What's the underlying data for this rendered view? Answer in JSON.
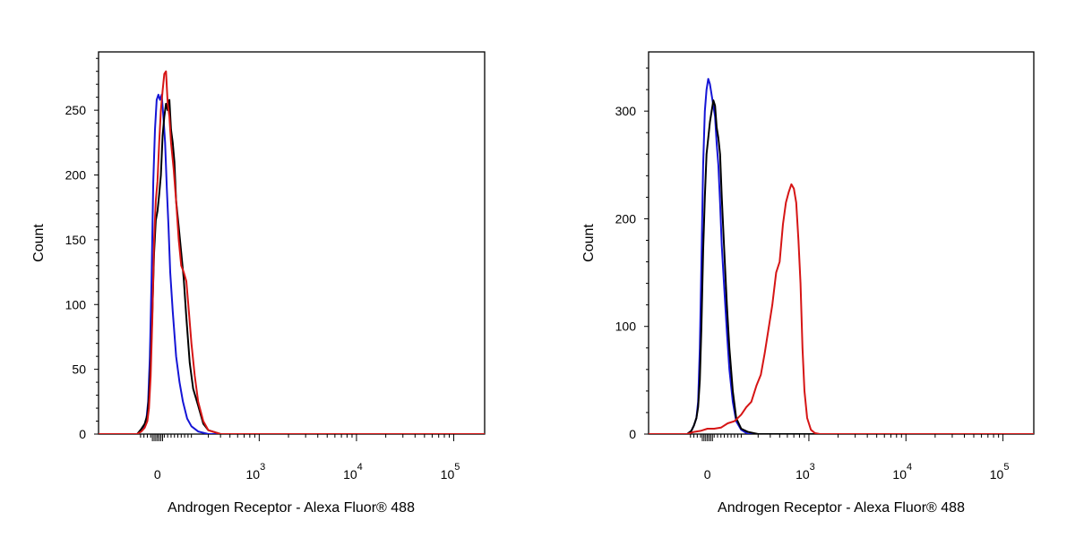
{
  "chart_data": [
    {
      "type": "line",
      "subtype": "flow-cytometry-histogram",
      "xlabel": "Androgen Receptor - Alexa Fluor® 488",
      "ylabel": "Count",
      "xscale": "biexponential",
      "ylim": [
        0,
        295
      ],
      "yticks": [
        0,
        50,
        100,
        150,
        200,
        250
      ],
      "ytick_labels": [
        "0",
        "50",
        "100",
        "150",
        "200",
        "250"
      ],
      "xticks": [
        {
          "base": "0",
          "exp": ""
        },
        {
          "base": "10",
          "exp": "3"
        },
        {
          "base": "10",
          "exp": "4"
        },
        {
          "base": "10",
          "exp": "5"
        }
      ],
      "grid": false,
      "legend": "none",
      "series": [
        {
          "color": "#1515d6",
          "x": [
            -120,
            -95,
            -80,
            -65,
            -55,
            -45,
            -35,
            -25,
            -15,
            -5,
            5,
            15,
            25,
            35,
            45,
            55,
            65,
            75,
            90,
            110,
            130,
            150,
            175,
            200,
            240,
            300,
            400,
            600,
            1000,
            10000,
            200000
          ],
          "y": [
            0,
            3,
            6,
            12,
            25,
            60,
            120,
            195,
            235,
            258,
            262,
            258,
            262,
            245,
            225,
            190,
            160,
            125,
            95,
            60,
            40,
            25,
            12,
            6,
            2,
            0,
            0,
            0,
            0,
            0,
            0
          ]
        },
        {
          "color": "#000000",
          "x": [
            -120,
            -95,
            -75,
            -60,
            -50,
            -40,
            -30,
            -20,
            -10,
            0,
            10,
            20,
            30,
            40,
            50,
            60,
            70,
            80,
            90,
            100,
            110,
            125,
            140,
            155,
            170,
            190,
            210,
            240,
            270,
            300,
            400,
            600,
            1000,
            10000,
            200000
          ],
          "y": [
            0,
            4,
            8,
            15,
            30,
            55,
            95,
            140,
            165,
            172,
            185,
            200,
            230,
            245,
            255,
            250,
            258,
            235,
            225,
            210,
            180,
            160,
            140,
            120,
            90,
            55,
            35,
            22,
            8,
            3,
            0,
            0,
            0,
            0,
            0
          ]
        },
        {
          "color": "#d61515",
          "x": [
            -120,
            -95,
            -75,
            -60,
            -50,
            -40,
            -30,
            -20,
            -10,
            0,
            10,
            20,
            30,
            40,
            50,
            60,
            70,
            80,
            95,
            110,
            125,
            140,
            155,
            170,
            185,
            200,
            220,
            240,
            270,
            300,
            400,
            600,
            1000,
            10000,
            200000
          ],
          "y": [
            0,
            2,
            5,
            10,
            20,
            45,
            90,
            150,
            180,
            195,
            225,
            250,
            265,
            278,
            280,
            255,
            245,
            225,
            205,
            180,
            150,
            130,
            125,
            118,
            95,
            70,
            45,
            25,
            10,
            3,
            0,
            0,
            0,
            0,
            0
          ]
        }
      ]
    },
    {
      "type": "line",
      "subtype": "flow-cytometry-histogram",
      "xlabel": "Androgen Receptor - Alexa Fluor® 488",
      "ylabel": "Count",
      "xscale": "biexponential",
      "ylim": [
        0,
        355
      ],
      "yticks": [
        0,
        100,
        200,
        300
      ],
      "ytick_labels": [
        "0",
        "100",
        "200",
        "300"
      ],
      "xticks": [
        {
          "base": "0",
          "exp": ""
        },
        {
          "base": "10",
          "exp": "3"
        },
        {
          "base": "10",
          "exp": "4"
        },
        {
          "base": "10",
          "exp": "5"
        }
      ],
      "grid": false,
      "legend": "none",
      "series": [
        {
          "color": "#1515d6",
          "x": [
            -120,
            -95,
            -80,
            -65,
            -55,
            -45,
            -35,
            -25,
            -15,
            -5,
            5,
            15,
            25,
            35,
            45,
            55,
            65,
            75,
            85,
            100,
            115,
            130,
            150,
            170,
            200,
            240,
            300,
            400,
            1000,
            10000,
            200000
          ],
          "y": [
            0,
            3,
            8,
            15,
            30,
            80,
            160,
            250,
            300,
            320,
            330,
            325,
            315,
            305,
            295,
            270,
            250,
            215,
            175,
            135,
            95,
            60,
            30,
            12,
            4,
            0,
            0,
            0,
            0,
            0,
            0
          ]
        },
        {
          "color": "#000000",
          "x": [
            -120,
            -95,
            -80,
            -65,
            -55,
            -45,
            -35,
            -25,
            -15,
            -5,
            5,
            15,
            25,
            35,
            45,
            55,
            65,
            75,
            85,
            100,
            115,
            130,
            150,
            170,
            200,
            240,
            300,
            400,
            1000,
            10000,
            200000
          ],
          "y": [
            0,
            3,
            8,
            15,
            25,
            50,
            100,
            170,
            220,
            260,
            275,
            290,
            300,
            310,
            305,
            285,
            275,
            260,
            220,
            170,
            120,
            80,
            40,
            15,
            5,
            2,
            0,
            0,
            0,
            0,
            0
          ]
        },
        {
          "color": "#d61515",
          "x": [
            -120,
            -80,
            -40,
            0,
            40,
            80,
            120,
            160,
            200,
            230,
            260,
            290,
            320,
            350,
            380,
            420,
            460,
            500,
            540,
            580,
            620,
            660,
            700,
            740,
            780,
            820,
            860,
            900,
            960,
            1050,
            1150,
            1300,
            2000,
            10000,
            200000
          ],
          "y": [
            0,
            2,
            3,
            5,
            5,
            6,
            10,
            12,
            18,
            25,
            30,
            45,
            55,
            75,
            95,
            120,
            150,
            160,
            195,
            215,
            225,
            232,
            228,
            215,
            180,
            140,
            80,
            40,
            15,
            4,
            1,
            0,
            0,
            0,
            0
          ]
        }
      ]
    }
  ]
}
